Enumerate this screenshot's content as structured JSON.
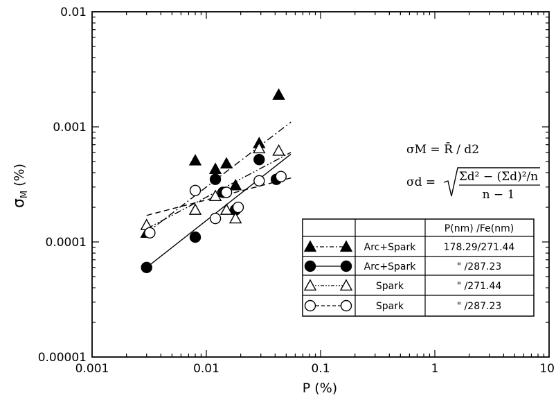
{
  "chart_data": {
    "type": "scatter",
    "title": "",
    "xlabel": "P   (%)",
    "ylabel": "σ_M (%)",
    "ylabel_main": "σ",
    "ylabel_sub": "M",
    "ylabel_unit": "(%)",
    "x_scale": "log",
    "y_scale": "log",
    "xlim": [
      0.001,
      10
    ],
    "ylim": [
      1e-05,
      0.01
    ],
    "x_ticks": [
      {
        "value": 0.001,
        "label": "0.001"
      },
      {
        "value": 0.01,
        "label": "0.01"
      },
      {
        "value": 0.1,
        "label": "0.1"
      },
      {
        "value": 1,
        "label": "1"
      },
      {
        "value": 10,
        "label": "10"
      }
    ],
    "y_ticks": [
      {
        "value": 1e-05,
        "label": "0.00001"
      },
      {
        "value": 0.0001,
        "label": "0.0001"
      },
      {
        "value": 0.001,
        "label": "0.001"
      },
      {
        "value": 0.01,
        "label": "0.01"
      }
    ],
    "grid": false,
    "legend_position": "bottom-right",
    "legend_header": "P(nm) /Fe(nm)",
    "series": [
      {
        "name": "Arc+Spark",
        "wavelengths": "178.29/271.44",
        "marker": "filled-triangle",
        "line": "dash-dot",
        "points": [
          [
            0.003,
            0.00012
          ],
          [
            0.008,
            0.00051
          ],
          [
            0.012,
            0.00043
          ],
          [
            0.015,
            0.00048
          ],
          [
            0.018,
            0.00031
          ],
          [
            0.029,
            0.00072
          ],
          [
            0.043,
            0.0019
          ]
        ],
        "fit": [
          [
            0.003,
            0.00012
          ],
          [
            0.055,
            0.0011
          ]
        ]
      },
      {
        "name": "Arc+Spark",
        "wavelengths": "\" /287.23",
        "marker": "filled-circle",
        "line": "solid",
        "points": [
          [
            0.003,
            6e-05
          ],
          [
            0.008,
            0.00011
          ],
          [
            0.012,
            0.00035
          ],
          [
            0.014,
            0.00027
          ],
          [
            0.018,
            0.00019
          ],
          [
            0.029,
            0.00052
          ],
          [
            0.041,
            0.00035
          ]
        ],
        "fit": [
          [
            0.003,
            6e-05
          ],
          [
            0.055,
            0.00058
          ]
        ]
      },
      {
        "name": "Spark",
        "wavelengths": "\" /271.44",
        "marker": "open-triangle",
        "line": "dash-dot-dot",
        "points": [
          [
            0.003,
            0.00014
          ],
          [
            0.008,
            0.00019
          ],
          [
            0.012,
            0.00025
          ],
          [
            0.015,
            0.00019
          ],
          [
            0.018,
            0.00016
          ],
          [
            0.029,
            0.00065
          ],
          [
            0.043,
            0.00062
          ]
        ],
        "fit": [
          [
            0.003,
            0.00013
          ],
          [
            0.055,
            0.0006
          ]
        ]
      },
      {
        "name": "Spark",
        "wavelengths": "\" /287.23",
        "marker": "open-circle",
        "line": "dashed",
        "points": [
          [
            0.0032,
            0.00012
          ],
          [
            0.008,
            0.00028
          ],
          [
            0.012,
            0.00016
          ],
          [
            0.015,
            0.00027
          ],
          [
            0.019,
            0.0002
          ],
          [
            0.029,
            0.00034
          ],
          [
            0.045,
            0.00037
          ]
        ],
        "fit": [
          [
            0.003,
            0.00017
          ],
          [
            0.055,
            0.00036
          ]
        ]
      }
    ],
    "annotations": {
      "formula1": "σM = R̄ / d2",
      "formula2_lhs": "σd =",
      "formula2_num": "Σd² − (Σd)²/n",
      "formula2_den": "n − 1"
    }
  }
}
